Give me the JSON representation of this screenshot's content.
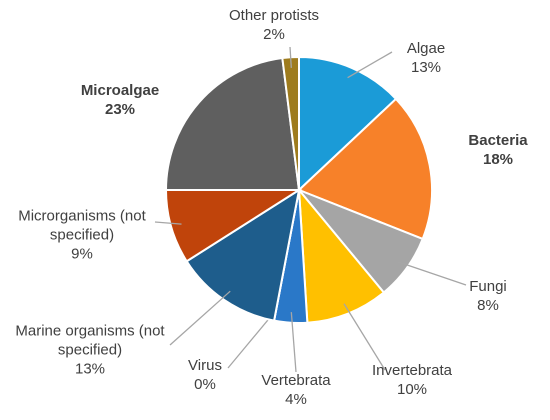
{
  "chart_data": {
    "type": "pie",
    "categories": [
      "Algae",
      "Bacteria",
      "Fungi",
      "Invertebrata",
      "Vertebrata",
      "Virus",
      "Marine organisms (not specified)",
      "Microrganisms (not specified)",
      "Microalgae",
      "Other protists"
    ],
    "values": [
      13,
      18,
      8,
      10,
      4,
      0,
      13,
      9,
      23,
      2
    ],
    "value_labels": [
      "13%",
      "18%",
      "8%",
      "10%",
      "4%",
      "0%",
      "13%",
      "9%",
      "23%",
      "2%"
    ],
    "colors": [
      "#1b9bd7",
      "#f78129",
      "#a5a5a5",
      "#ffc000",
      "#2a78c8",
      "#6f2f9f",
      "#1e5d8c",
      "#c0440b",
      "#5f5f5f",
      "#9e7b1d"
    ],
    "bold": [
      false,
      true,
      false,
      false,
      false,
      false,
      false,
      false,
      true,
      false
    ]
  }
}
